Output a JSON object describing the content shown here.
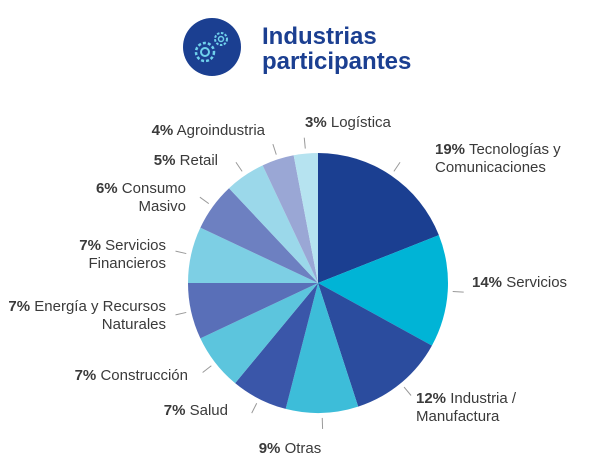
{
  "chart_data": {
    "type": "pie",
    "title": "Industrias participantes",
    "categories": [
      "Tecnologías y Comunicaciones",
      "Servicios",
      "Industria / Manufactura",
      "Otras",
      "Salud",
      "Construcción",
      "Energía y Recursos Naturales",
      "Servicios Financieros",
      "Consumo Masivo",
      "Retail",
      "Agroindustria",
      "Logística"
    ],
    "values": [
      19,
      14,
      12,
      9,
      7,
      7,
      7,
      7,
      6,
      5,
      4,
      3
    ],
    "value_labels": [
      "19%",
      "14%",
      "12%",
      "9%",
      "7%",
      "7%",
      "7%",
      "7%",
      "6%",
      "5%",
      "4%",
      "3%"
    ],
    "colors": [
      "#1b3f91",
      "#00b4d6",
      "#2b4c9e",
      "#3dbdd9",
      "#3a56a9",
      "#5cc5dd",
      "#596fb8",
      "#7dcfe4",
      "#6d80c1",
      "#9bd8ea",
      "#9aa7d5",
      "#b6e3f0"
    ]
  }
}
